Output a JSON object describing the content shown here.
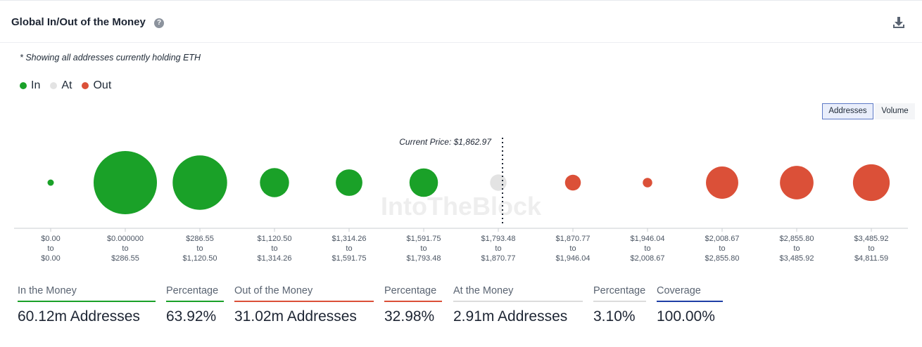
{
  "header": {
    "title": "Global In/Out of the Money",
    "help_icon": "question-circle-icon",
    "download_icon": "download-icon"
  },
  "note": "* Showing all addresses currently holding ETH",
  "legend": [
    {
      "label": "In",
      "color": "#1aa128"
    },
    {
      "label": "At",
      "color": "#e3e3e3"
    },
    {
      "label": "Out",
      "color": "#db5038"
    }
  ],
  "toggles": [
    {
      "label": "Addresses",
      "active": true
    },
    {
      "label": "Volume",
      "active": false
    }
  ],
  "watermark": "IntoTheBlock",
  "chart_data": {
    "type": "bubble",
    "current_price_label": "Current Price: $1,862.97",
    "current_price": 1862.97,
    "categories": [
      {
        "from": "$0.00",
        "to": "$0.00",
        "status": "in",
        "relative_size": 0.1
      },
      {
        "from": "$0.000000",
        "to": "$286.55",
        "status": "in",
        "relative_size": 1.0
      },
      {
        "from": "$286.55",
        "to": "$1,120.50",
        "status": "in",
        "relative_size": 0.86
      },
      {
        "from": "$1,120.50",
        "to": "$1,314.26",
        "status": "in",
        "relative_size": 0.46
      },
      {
        "from": "$1,314.26",
        "to": "$1,591.75",
        "status": "in",
        "relative_size": 0.42
      },
      {
        "from": "$1,591.75",
        "to": "$1,793.48",
        "status": "in",
        "relative_size": 0.45
      },
      {
        "from": "$1,793.48",
        "to": "$1,870.77",
        "status": "at",
        "relative_size": 0.26
      },
      {
        "from": "$1,870.77",
        "to": "$1,946.04",
        "status": "out",
        "relative_size": 0.25
      },
      {
        "from": "$1,946.04",
        "to": "$2,008.67",
        "status": "out",
        "relative_size": 0.15
      },
      {
        "from": "$2,008.67",
        "to": "$2,855.80",
        "status": "out",
        "relative_size": 0.51
      },
      {
        "from": "$2,855.80",
        "to": "$3,485.92",
        "status": "out",
        "relative_size": 0.53
      },
      {
        "from": "$3,485.92",
        "to": "$4,811.59",
        "status": "out",
        "relative_size": 0.58
      }
    ],
    "colors": {
      "in": "#1aa128",
      "at": "#e3e3e3",
      "out": "#db5038"
    },
    "connector": "to"
  },
  "stats": [
    {
      "label": "In the Money",
      "value": "60.12m Addresses",
      "color": "#1aa128"
    },
    {
      "label": "Percentage",
      "value": "63.92%",
      "color": "#1aa128"
    },
    {
      "label": "Out of the Money",
      "value": "31.02m Addresses",
      "color": "#db5038"
    },
    {
      "label": "Percentage",
      "value": "32.98%",
      "color": "#db5038"
    },
    {
      "label": "At the Money",
      "value": "2.91m Addresses",
      "color": "#dcdcdc"
    },
    {
      "label": "Percentage",
      "value": "3.10%",
      "color": "#dcdcdc"
    },
    {
      "label": "Coverage",
      "value": "100.00%",
      "color": "#1f3fa6"
    }
  ]
}
